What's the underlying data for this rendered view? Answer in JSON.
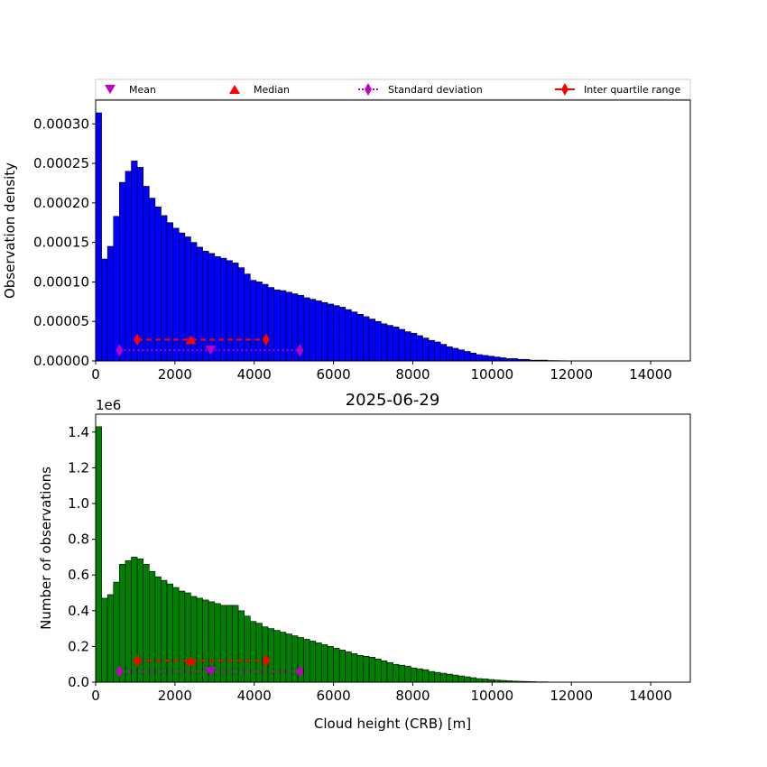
{
  "chart_data": [
    {
      "type": "bar",
      "subtitle": "",
      "ylabel": "Observation density",
      "xlabel": "",
      "xlim": [
        0,
        15000
      ],
      "ylim": [
        0,
        0.00033
      ],
      "xticks": [
        "0",
        "2000",
        "4000",
        "6000",
        "8000",
        "10000",
        "12000",
        "14000"
      ],
      "yticks": [
        "0.00000",
        "0.00005",
        "0.00010",
        "0.00015",
        "0.00020",
        "0.00025",
        "0.00030"
      ],
      "bin_width": 150,
      "bar_color": "#0000ff",
      "values": [
        0.000314,
        0.000129,
        0.000145,
        0.000183,
        0.000226,
        0.00024,
        0.000253,
        0.000245,
        0.000221,
        0.000206,
        0.000195,
        0.000184,
        0.000175,
        0.000168,
        0.000162,
        0.000157,
        0.00015,
        0.000144,
        0.000139,
        0.000136,
        0.000132,
        0.00013,
        0.000127,
        0.000124,
        0.000118,
        0.00011,
        0.000102,
        0.0001,
        9.7e-05,
        9.3e-05,
        9e-05,
        8.9e-05,
        8.7e-05,
        8.5e-05,
        8.3e-05,
        8e-05,
        7.8e-05,
        7.6e-05,
        7.4e-05,
        7.2e-05,
        7e-05,
        6.8e-05,
        6.5e-05,
        6.2e-05,
        5.9e-05,
        5.6e-05,
        5.3e-05,
        5e-05,
        4.7e-05,
        4.5e-05,
        4.3e-05,
        4e-05,
        3.7e-05,
        3.5e-05,
        3.2e-05,
        2.9e-05,
        2.6e-05,
        2.4e-05,
        2.1e-05,
        1.8e-05,
        1.6e-05,
        1.4e-05,
        1.2e-05,
        1e-05,
        8e-06,
        7e-06,
        6e-06,
        5e-06,
        4e-06,
        3e-06,
        3e-06,
        2e-06,
        2e-06,
        1e-06,
        1e-06,
        1e-06,
        5e-07,
        4e-07,
        3e-07,
        2e-07
      ],
      "markers": {
        "mean": {
          "x": 2900,
          "y": 1.35e-05
        },
        "median": {
          "x": 2400,
          "y": 2.7e-05
        },
        "std": {
          "x0": 600,
          "x1": 5150,
          "y": 1.35e-05
        },
        "iqr": {
          "x0": 1050,
          "x1": 4300,
          "y": 2.7e-05
        }
      }
    },
    {
      "type": "bar",
      "subtitle": "2025-06-29",
      "ylabel": "Number of observations",
      "xlabel": "Cloud height (CRB) [m]",
      "offset_label": "1e6",
      "xlim": [
        0,
        15000
      ],
      "ylim": [
        0,
        1.5
      ],
      "xticks": [
        "0",
        "2000",
        "4000",
        "6000",
        "8000",
        "10000",
        "12000",
        "14000"
      ],
      "yticks": [
        "0.0",
        "0.2",
        "0.4",
        "0.6",
        "0.8",
        "1.0",
        "1.2",
        "1.4"
      ],
      "bin_width": 150,
      "bar_color": "#008000",
      "values": [
        1.43,
        0.47,
        0.49,
        0.56,
        0.66,
        0.68,
        0.7,
        0.69,
        0.66,
        0.62,
        0.59,
        0.57,
        0.55,
        0.53,
        0.51,
        0.5,
        0.48,
        0.47,
        0.46,
        0.45,
        0.44,
        0.43,
        0.43,
        0.43,
        0.4,
        0.37,
        0.34,
        0.33,
        0.31,
        0.3,
        0.29,
        0.28,
        0.27,
        0.26,
        0.25,
        0.24,
        0.23,
        0.22,
        0.21,
        0.2,
        0.19,
        0.18,
        0.17,
        0.16,
        0.15,
        0.145,
        0.14,
        0.13,
        0.12,
        0.11,
        0.1,
        0.095,
        0.09,
        0.08,
        0.075,
        0.07,
        0.06,
        0.055,
        0.05,
        0.045,
        0.04,
        0.035,
        0.03,
        0.025,
        0.02,
        0.018,
        0.015,
        0.012,
        0.01,
        0.008,
        0.006,
        0.005,
        0.004,
        0.003,
        0.002,
        0.002,
        0.001,
        0.001,
        0.0005,
        0.0003
      ],
      "markers": {
        "mean": {
          "x": 2900,
          "y": 0.06
        },
        "median": {
          "x": 2400,
          "y": 0.12
        },
        "std": {
          "x0": 600,
          "x1": 5150,
          "y": 0.06
        },
        "iqr": {
          "x0": 1050,
          "x1": 4300,
          "y": 0.12
        }
      }
    }
  ],
  "legend": {
    "placement": "top",
    "entries": [
      {
        "label": "Mean",
        "marker": "triangle-down",
        "color": "#bf00bf"
      },
      {
        "label": "Median",
        "marker": "triangle-up",
        "color": "#ff0000"
      },
      {
        "label": "Standard deviation",
        "marker": "diamond-dotted-line",
        "color": "#bf00bf"
      },
      {
        "label": "Inter quartile range",
        "marker": "diamond-solid-line",
        "color": "#ff0000"
      }
    ]
  }
}
